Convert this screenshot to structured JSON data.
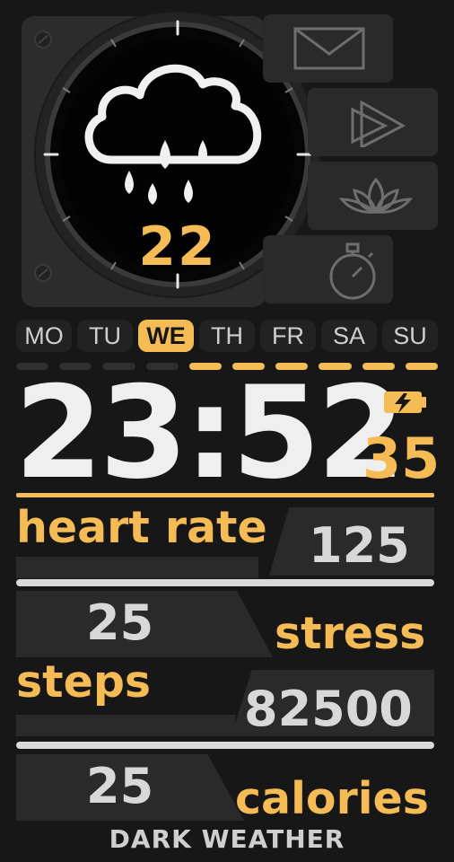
{
  "weather": {
    "icon": "cloud-rain-icon",
    "temperature": "22"
  },
  "apps": [
    {
      "name": "messages",
      "icon": "envelope-icon"
    },
    {
      "name": "music",
      "icon": "play-icon"
    },
    {
      "name": "meditation",
      "icon": "lotus-icon"
    },
    {
      "name": "stopwatch",
      "icon": "stopwatch-icon"
    }
  ],
  "week": {
    "days": [
      "MO",
      "TU",
      "WE",
      "TH",
      "FR",
      "SA",
      "SU"
    ],
    "active_index": 2
  },
  "clock": {
    "time": "23:52",
    "seconds": "35",
    "battery_icon": "battery-charging-icon"
  },
  "stats": {
    "heart_rate": {
      "label": "heart rate",
      "value": "125"
    },
    "stress": {
      "label": "stress",
      "value": "25"
    },
    "steps": {
      "label": "steps",
      "value": "82500"
    },
    "calories": {
      "label": "calories",
      "value": "25"
    }
  },
  "footer": {
    "brand": "DARK WEATHER"
  },
  "colors": {
    "accent": "#f5bb55",
    "background": "#171717",
    "panel": "#2a2a2a",
    "text": "#d8d8d8"
  }
}
